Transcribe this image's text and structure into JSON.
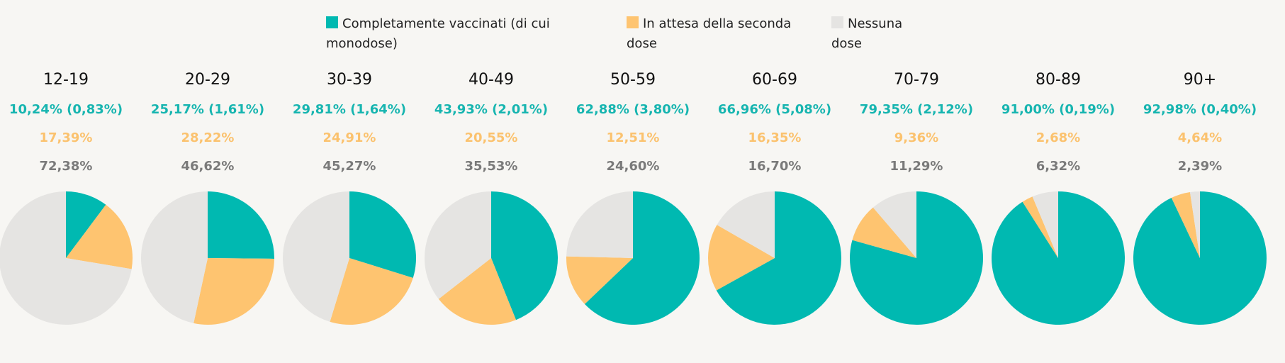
{
  "legend": {
    "full": "Completamente vaccinati (di cui monodose)",
    "waiting": "In attesa della seconda dose",
    "none": "Nessuna dose"
  },
  "colors": {
    "full": "#00b9b1",
    "waiting": "#fec470",
    "none": "#e5e4e2"
  },
  "chart_data": {
    "type": "pie",
    "title": "",
    "series_names": [
      "Completamente vaccinati (di cui monodose)",
      "In attesa della seconda dose",
      "Nessuna dose"
    ],
    "groups": [
      {
        "label": "12-19",
        "full": 10.24,
        "single_dose": 0.83,
        "waiting": 17.39,
        "none": 72.38,
        "full_text": "10,24% (0,83%)",
        "waiting_text": "17,39%",
        "none_text": "72,38%"
      },
      {
        "label": "20-29",
        "full": 25.17,
        "single_dose": 1.61,
        "waiting": 28.22,
        "none": 46.62,
        "full_text": "25,17% (1,61%)",
        "waiting_text": "28,22%",
        "none_text": "46,62%"
      },
      {
        "label": "30-39",
        "full": 29.81,
        "single_dose": 1.64,
        "waiting": 24.91,
        "none": 45.27,
        "full_text": "29,81% (1,64%)",
        "waiting_text": "24,91%",
        "none_text": "45,27%"
      },
      {
        "label": "40-49",
        "full": 43.93,
        "single_dose": 2.01,
        "waiting": 20.55,
        "none": 35.53,
        "full_text": "43,93% (2,01%)",
        "waiting_text": "20,55%",
        "none_text": "35,53%"
      },
      {
        "label": "50-59",
        "full": 62.88,
        "single_dose": 3.8,
        "waiting": 12.51,
        "none": 24.6,
        "full_text": "62,88% (3,80%)",
        "waiting_text": "12,51%",
        "none_text": "24,60%"
      },
      {
        "label": "60-69",
        "full": 66.96,
        "single_dose": 5.08,
        "waiting": 16.35,
        "none": 16.7,
        "full_text": "66,96% (5,08%)",
        "waiting_text": "16,35%",
        "none_text": "16,70%"
      },
      {
        "label": "70-79",
        "full": 79.35,
        "single_dose": 2.12,
        "waiting": 9.36,
        "none": 11.29,
        "full_text": "79,35% (2,12%)",
        "waiting_text": "9,36%",
        "none_text": "11,29%"
      },
      {
        "label": "80-89",
        "full": 91.0,
        "single_dose": 0.19,
        "waiting": 2.68,
        "none": 6.32,
        "full_text": "91,00% (0,19%)",
        "waiting_text": "2,68%",
        "none_text": "6,32%"
      },
      {
        "label": "90+",
        "full": 92.98,
        "single_dose": 0.4,
        "waiting": 4.64,
        "none": 2.39,
        "full_text": "92,98% (0,40%)",
        "waiting_text": "4,64%",
        "none_text": "2,39%"
      }
    ]
  }
}
